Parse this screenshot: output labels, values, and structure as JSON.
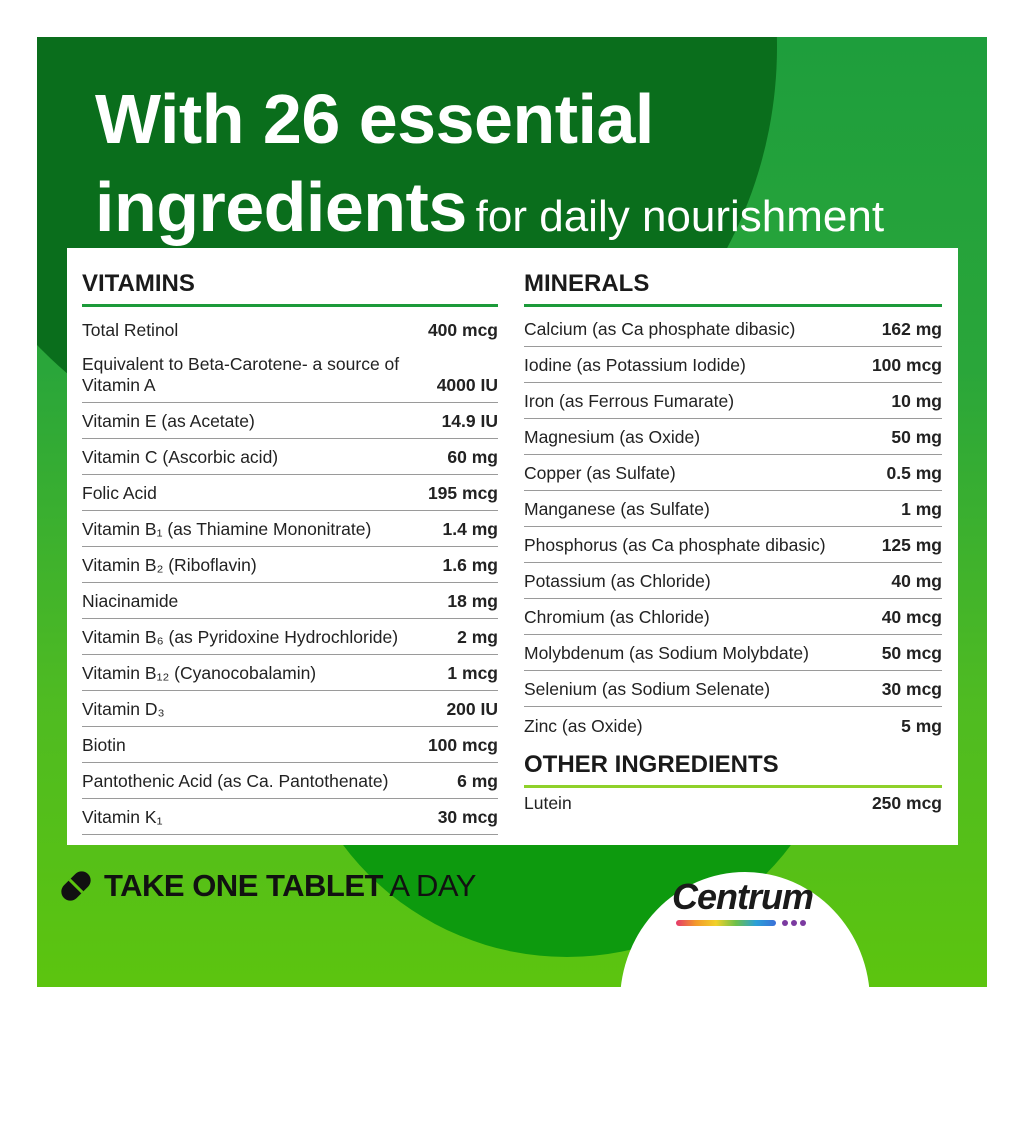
{
  "title": {
    "line1": "With 26 essential",
    "line2_bold": "ingredients",
    "line2_light": "for daily nourishment"
  },
  "vitamins": {
    "heading": "VITAMINS",
    "rows": [
      {
        "name": "Total Retinol",
        "value": "400 mcg"
      },
      {
        "name": "Equivalent to Beta-Carotene- a source of Vitamin A",
        "value": "4000 IU"
      },
      {
        "name": "Vitamin E (as Acetate)",
        "value": "14.9 IU"
      },
      {
        "name": "Vitamin C  (Ascorbic acid)",
        "value": "60 mg"
      },
      {
        "name": "Folic Acid",
        "value": "195 mcg"
      },
      {
        "name": "Vitamin B₁  (as Thiamine Mononitrate)",
        "value": "1.4 mg"
      },
      {
        "name": "Vitamin B₂ (Riboflavin)",
        "value": "1.6 mg"
      },
      {
        "name": "Niacinamide",
        "value": "18 mg"
      },
      {
        "name": "Vitamin B₆  (as Pyridoxine Hydrochloride)",
        "value": "2 mg"
      },
      {
        "name": "Vitamin B₁₂  (Cyanocobalamin)",
        "value": "1 mcg"
      },
      {
        "name": "Vitamin D₃",
        "value": "200 IU"
      },
      {
        "name": "Biotin",
        "value": "100 mcg"
      },
      {
        "name": "Pantothenic Acid (as Ca. Pantothenate)",
        "value": "6 mg"
      },
      {
        "name": "Vitamin K₁",
        "value": "30 mcg"
      }
    ]
  },
  "minerals": {
    "heading": "MINERALS",
    "rows": [
      {
        "name": "Calcium (as Ca phosphate dibasic)",
        "value": "162 mg"
      },
      {
        "name": "Iodine (as Potassium Iodide)",
        "value": "100 mcg"
      },
      {
        "name": "Iron (as Ferrous Fumarate)",
        "value": "10 mg"
      },
      {
        "name": "Magnesium (as Oxide)",
        "value": "50 mg"
      },
      {
        "name": "Copper (as Sulfate)",
        "value": "0.5 mg"
      },
      {
        "name": "Manganese (as Sulfate)",
        "value": "1 mg"
      },
      {
        "name": "Phosphorus (as Ca phosphate dibasic)",
        "value": "125 mg"
      },
      {
        "name": "Potassium (as Chloride)",
        "value": "40 mg"
      },
      {
        "name": "Chromium (as Chloride)",
        "value": "40 mcg"
      },
      {
        "name": "Molybdenum (as Sodium Molybdate)",
        "value": "50 mcg"
      },
      {
        "name": "Selenium (as Sodium Selenate)",
        "value": "30 mcg"
      },
      {
        "name": "Zinc (as Oxide)",
        "value": "5 mg"
      }
    ]
  },
  "other": {
    "heading": "OTHER INGREDIENTS",
    "rows": [
      {
        "name": "Lutein",
        "value": "250 mcg"
      }
    ]
  },
  "footer": {
    "take_bold": "TAKE ONE TABLET",
    "take_light": "A DAY",
    "brand": "Centrum",
    "tablet_icon": "tablet-icon"
  },
  "colors": {
    "dark_green": "#0a6e1c",
    "green": "#1e9e3c",
    "lime": "#5cc40f",
    "divider_green": "#1c9a3a"
  }
}
